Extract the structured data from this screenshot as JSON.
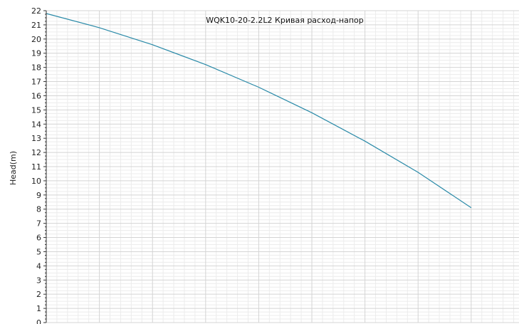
{
  "chart_data": {
    "type": "line",
    "title": "WQK10-20-2.2L2 Кривая расход-напор",
    "xlabel": "",
    "ylabel": "Head(m)",
    "ylim": [
      0,
      22
    ],
    "xlim": [
      0,
      8.9
    ],
    "y_ticks": [
      "0",
      "1",
      "2",
      "3",
      "4",
      "5",
      "6",
      "7",
      "8",
      "9",
      "10",
      "11",
      "12",
      "13",
      "14",
      "15",
      "16",
      "17",
      "18",
      "19",
      "20",
      "21",
      "22"
    ],
    "x_minor_per_major": 5,
    "y_minor_per_major": 4,
    "grid": true,
    "colors": {
      "line": "#2a8aa8",
      "axis": "#333333",
      "grid_major": "#d4d4d4",
      "grid_minor": "#ececec"
    },
    "series": [
      {
        "x": [
          0,
          1,
          2,
          3,
          4,
          5,
          6,
          7,
          8
        ],
        "values": [
          21.8,
          20.8,
          19.6,
          18.2,
          16.6,
          14.8,
          12.8,
          10.6,
          8.1
        ]
      }
    ]
  }
}
